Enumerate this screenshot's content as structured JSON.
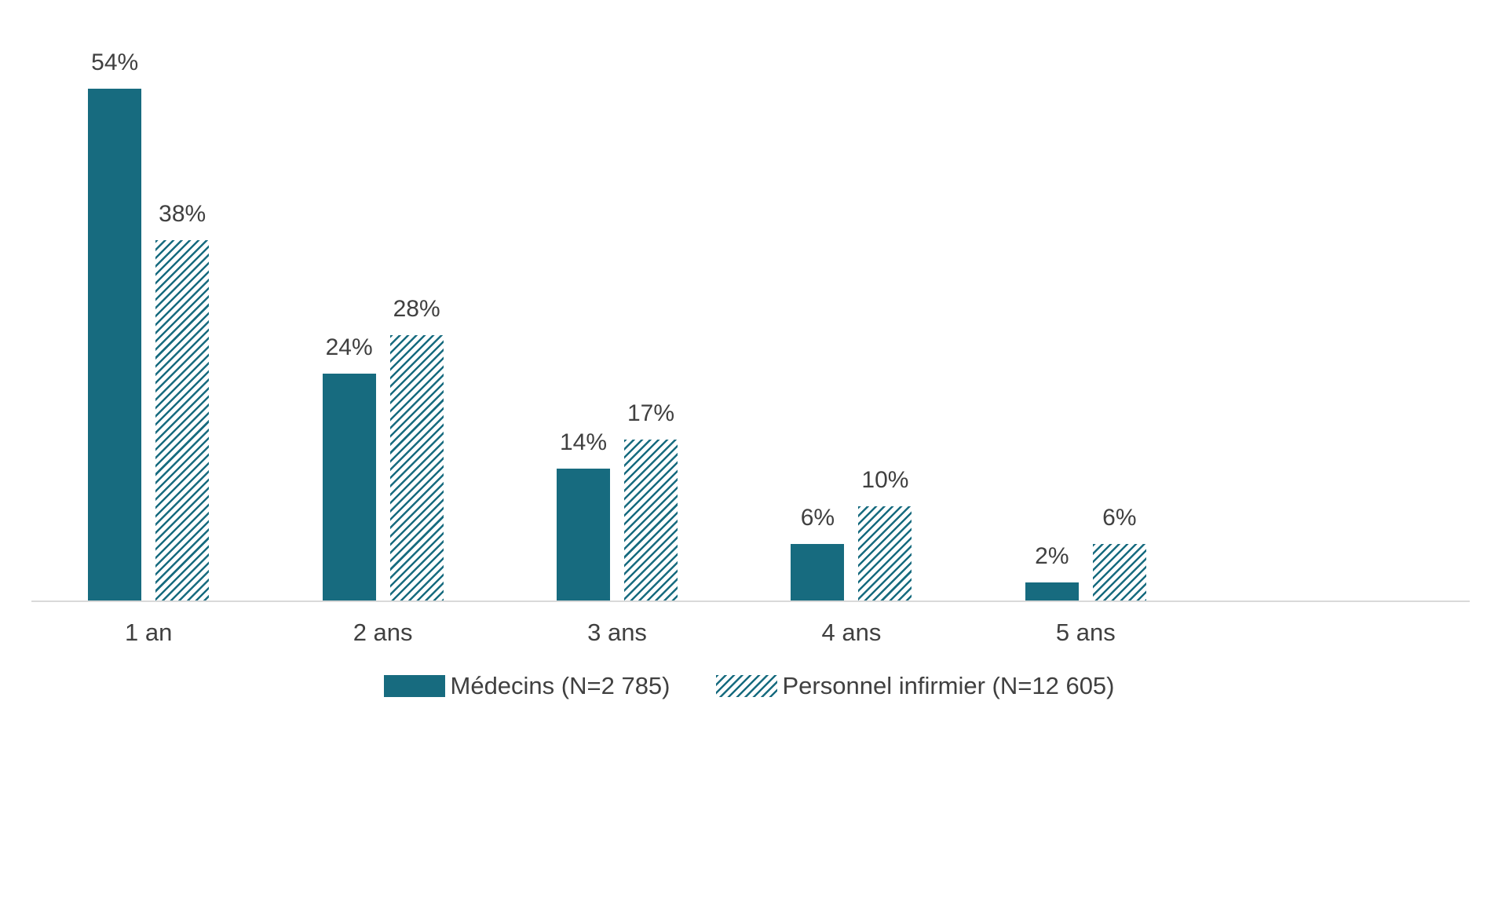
{
  "chart_data": {
    "type": "bar",
    "title": "",
    "xlabel": "",
    "ylabel": "",
    "ylim": [
      0,
      60
    ],
    "grid": false,
    "legend_position": "bottom",
    "categories": [
      "1 an",
      "2 ans",
      "3 ans",
      "4 ans",
      "5 ans"
    ],
    "series": [
      {
        "name": "Médecins (N=2 785)",
        "style": "solid",
        "values": [
          54,
          24,
          14,
          6,
          2
        ],
        "labels": [
          "54%",
          "24%",
          "14%",
          "6%",
          "2%"
        ]
      },
      {
        "name": "Personnel infirmier (N=12 605)",
        "style": "hatched",
        "values": [
          38,
          28,
          17,
          10,
          6
        ],
        "labels": [
          "38%",
          "28%",
          "17%",
          "10%",
          "6%"
        ]
      }
    ],
    "colors": {
      "accent": "#176B7F",
      "baseline": "#D9D9D9",
      "label": "#404040"
    }
  }
}
